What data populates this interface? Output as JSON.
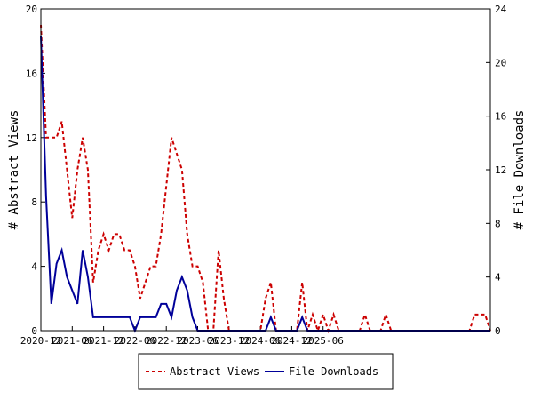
{
  "chart_data": {
    "type": "line",
    "title": "",
    "xlabel": "",
    "ylabel_left": "# Abstract Views",
    "ylabel_right": "# File Downloads",
    "ylim_left": [
      0,
      20
    ],
    "ylim_right": [
      0,
      24
    ],
    "yticks_left": [
      "0",
      "4",
      "8",
      "12",
      "16",
      "20"
    ],
    "yticks_right": [
      "0",
      "4",
      "8",
      "12",
      "16",
      "20",
      "24"
    ],
    "xticks": [
      "2020-12",
      "2021-06",
      "2021-12",
      "2022-06",
      "2022-12",
      "2023-06",
      "2023-12",
      "2024-06",
      "2024-12",
      "2025-06"
    ],
    "grid": false,
    "legend_position": "bottom",
    "series": [
      {
        "name": "Abstract Views",
        "axis": "left",
        "color": "#cc0000",
        "dash": "dashed",
        "values": [
          19,
          12,
          12,
          12,
          13,
          10,
          7,
          10,
          12,
          10,
          3,
          5,
          6,
          5,
          6,
          6,
          5,
          5,
          4,
          2,
          3,
          4,
          4,
          6,
          9,
          12,
          11,
          10,
          6,
          4,
          4,
          3,
          0,
          0,
          5,
          2,
          0,
          0,
          0,
          0,
          0,
          0,
          0,
          2,
          3,
          0,
          0,
          0,
          0,
          0,
          3,
          0,
          1,
          0,
          1,
          0,
          1,
          0,
          0,
          0,
          0,
          0,
          1,
          0,
          0,
          0,
          1,
          0,
          0,
          0,
          0,
          0,
          0,
          0,
          0,
          0,
          0,
          0,
          0,
          0,
          0,
          0,
          0,
          1,
          1,
          1,
          0
        ]
      },
      {
        "name": "File Downloads",
        "axis": "right",
        "color": "#000099",
        "dash": "solid",
        "values": [
          22,
          10,
          2,
          5,
          6,
          4,
          3,
          2,
          6,
          4,
          1,
          1,
          1,
          1,
          1,
          1,
          1,
          1,
          0,
          1,
          1,
          1,
          1,
          2,
          2,
          1,
          3,
          4,
          3,
          1,
          0,
          0,
          0,
          0,
          0,
          0,
          0,
          0,
          0,
          0,
          0,
          0,
          0,
          0,
          1,
          0,
          0,
          0,
          0,
          0,
          1,
          0,
          0,
          0,
          0,
          0,
          0,
          0,
          0,
          0,
          0,
          0,
          0,
          0,
          0,
          0,
          0,
          0,
          0,
          0,
          0,
          0,
          0,
          0,
          0,
          0,
          0,
          0,
          0,
          0,
          0,
          0,
          0,
          0,
          0,
          0,
          0
        ]
      }
    ]
  }
}
